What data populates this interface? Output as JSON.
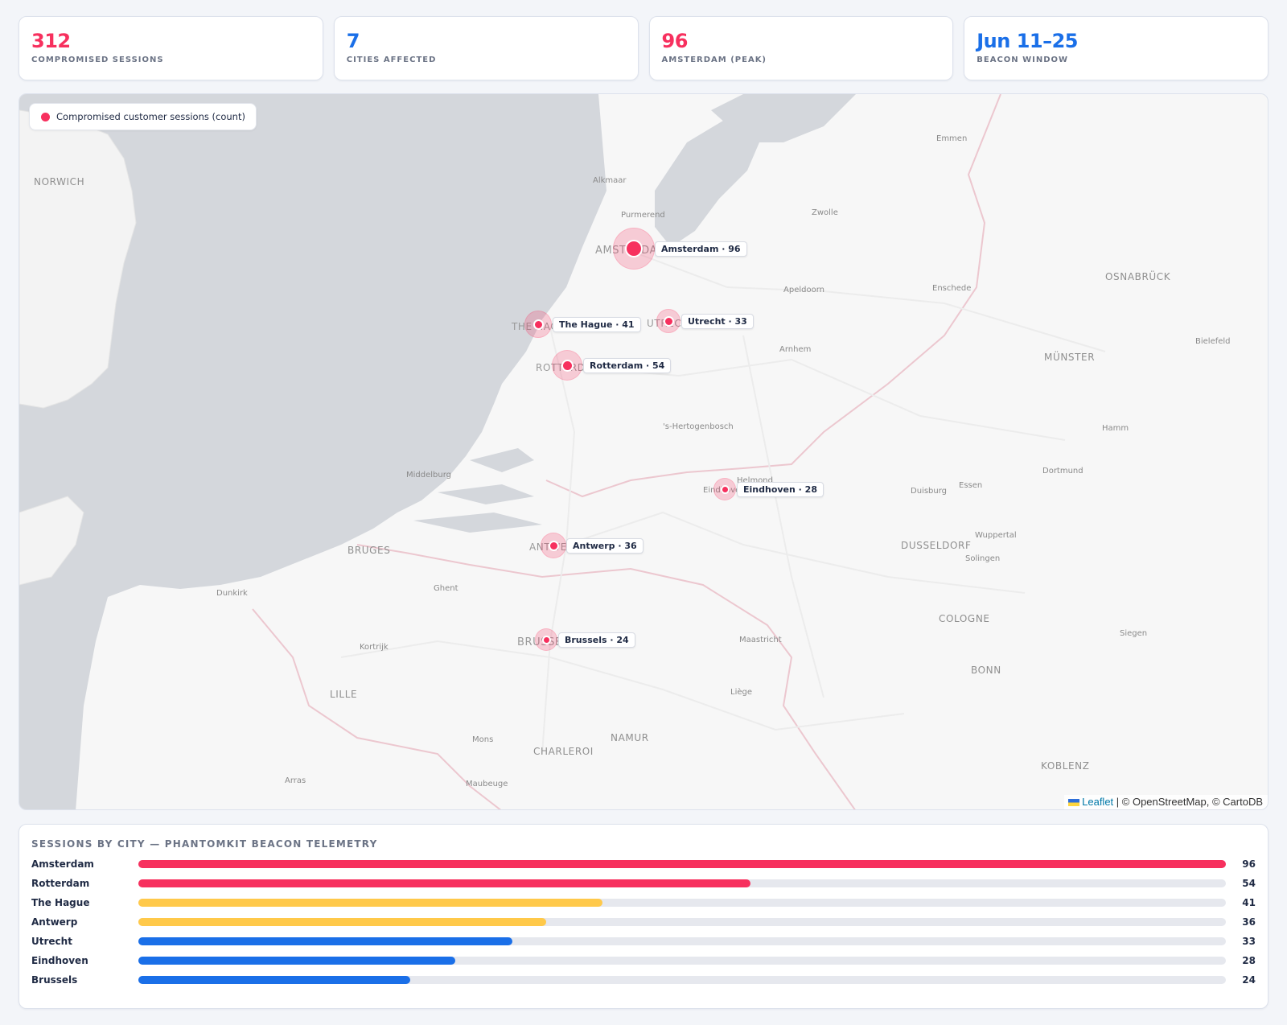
{
  "colors": {
    "red": "#f7305e",
    "blue": "#1a6fe8",
    "amber": "#ffc94a"
  },
  "stats": [
    {
      "value": "312",
      "label": "COMPROMISED SESSIONS",
      "color": "#f7305e"
    },
    {
      "value": "7",
      "label": "CITIES AFFECTED",
      "color": "#1a6fe8"
    },
    {
      "value": "96",
      "label": "AMSTERDAM (PEAK)",
      "color": "#f7305e"
    },
    {
      "value": "Jun 11–25",
      "label": "BEACON WINDOW",
      "color": "#1a6fe8"
    }
  ],
  "map": {
    "legend": "Compromised customer sessions (count)",
    "attribution": {
      "leaflet": "Leaflet",
      "rest": " | © OpenStreetMap, © CartoDB"
    },
    "base_labels": [
      "NORWICH",
      "Alkmaar",
      "Purmerend",
      "Emmen",
      "Zwolle",
      "Apeldoorn",
      "Enschede",
      "OSNABRÜCK",
      "Bielefeld",
      "Arnhem",
      "MÜNSTER",
      "'s-Hertogenbosch",
      "Hamm",
      "Middelburg",
      "Dortmund",
      "Helmond",
      "Duisburg",
      "Essen",
      "Wuppertal",
      "DUSSELDORF",
      "Solingen",
      "BRUGES",
      "Ghent",
      "Dunkirk",
      "Kortrijk",
      "Maastricht",
      "COLOGNE",
      "Siegen",
      "BONN",
      "LILLE",
      "Liège",
      "Mons",
      "NAMUR",
      "CHARLEROI",
      "KOBLENZ",
      "Arras",
      "Maubeuge",
      "AMSTERDAM",
      "THE HAGUE",
      "UTRECHT",
      "ROTTERDAM",
      "Eindhoven",
      "ANTWERP",
      "BRUSSELS"
    ],
    "markers": [
      {
        "city": "Amsterdam",
        "count": 96,
        "label": "Amsterdam · 96"
      },
      {
        "city": "The Hague",
        "count": 41,
        "label": "The Hague · 41"
      },
      {
        "city": "Utrecht",
        "count": 33,
        "label": "Utrecht · 33"
      },
      {
        "city": "Rotterdam",
        "count": 54,
        "label": "Rotterdam · 54"
      },
      {
        "city": "Eindhoven",
        "count": 28,
        "label": "Eindhoven · 28"
      },
      {
        "city": "Antwerp",
        "count": 36,
        "label": "Antwerp · 36"
      },
      {
        "city": "Brussels",
        "count": 24,
        "label": "Brussels · 24"
      }
    ]
  },
  "chart_data": {
    "type": "bar",
    "title": "SESSIONS BY CITY — PHANTOMKIT BEACON TELEMETRY",
    "categories": [
      "Amsterdam",
      "Rotterdam",
      "The Hague",
      "Antwerp",
      "Utrecht",
      "Eindhoven",
      "Brussels"
    ],
    "values": [
      96,
      54,
      41,
      36,
      33,
      28,
      24
    ],
    "bar_colors": [
      "#f7305e",
      "#f7305e",
      "#ffc94a",
      "#ffc94a",
      "#1a6fe8",
      "#1a6fe8",
      "#1a6fe8"
    ],
    "ylim": [
      0,
      96
    ]
  }
}
